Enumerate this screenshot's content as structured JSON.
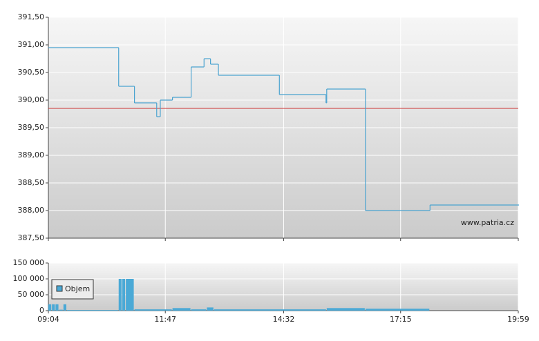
{
  "chart_data": [
    {
      "type": "line",
      "step": "post",
      "x": [
        "09:04",
        "10:42",
        "11:04",
        "11:35",
        "11:40",
        "11:57",
        "12:23",
        "12:41",
        "12:50",
        "13:01",
        "14:26",
        "15:31",
        "15:32",
        "16:26",
        "17:56",
        "19:59"
      ],
      "values": [
        390.95,
        390.25,
        389.95,
        389.7,
        390.0,
        390.05,
        390.6,
        390.75,
        390.65,
        390.45,
        390.1,
        389.95,
        390.2,
        388.0,
        388.1,
        388.1
      ],
      "color": "#4aa3d0",
      "xlim": [
        "09:04",
        "19:59"
      ],
      "ylim": [
        387.5,
        391.5
      ],
      "yticks": [
        {
          "value": 387.5,
          "label": "387,50"
        },
        {
          "value": 388,
          "label": "388,00"
        },
        {
          "value": 388.5,
          "label": "388,50"
        },
        {
          "value": 389,
          "label": "389,00"
        },
        {
          "value": 389.5,
          "label": "389,50"
        },
        {
          "value": 390,
          "label": "390,00"
        },
        {
          "value": 390.5,
          "label": "390,50"
        },
        {
          "value": 391,
          "label": "391,00"
        },
        {
          "value": 391.5,
          "label": "391,50"
        }
      ],
      "grid": true,
      "reference_line": {
        "value": 389.85,
        "color": "#cc3333"
      },
      "annotation": "www.patria.cz"
    },
    {
      "type": "histogram",
      "bins": [
        "09:04",
        "09:09",
        "09:14",
        "09:19",
        "09:25",
        "09:30",
        "10:42",
        "10:47",
        "10:52",
        "11:04",
        "11:57",
        "12:23",
        "12:45",
        "12:55",
        "15:32",
        "16:26",
        "17:56"
      ],
      "series": [
        {
          "name": "Objem",
          "color": "#4aa9d6",
          "values": [
            20000,
            20000,
            20000,
            3000,
            20000,
            2000,
            100000,
            100000,
            100000,
            4000,
            8000,
            4000,
            10000,
            4000,
            8000,
            6000
          ]
        }
      ],
      "xlim": [
        "09:04",
        "19:59"
      ],
      "xticks": [
        "09:04",
        "11:47",
        "14:32",
        "17:15",
        "19:59"
      ],
      "ylim": [
        0,
        150000
      ],
      "yticks": [
        0,
        {
          "value": 50000,
          "label": "50 000"
        },
        {
          "value": 100000,
          "label": "100 000"
        },
        {
          "value": 150000,
          "label": "150 000"
        }
      ],
      "grid": true,
      "legend": "left"
    }
  ]
}
